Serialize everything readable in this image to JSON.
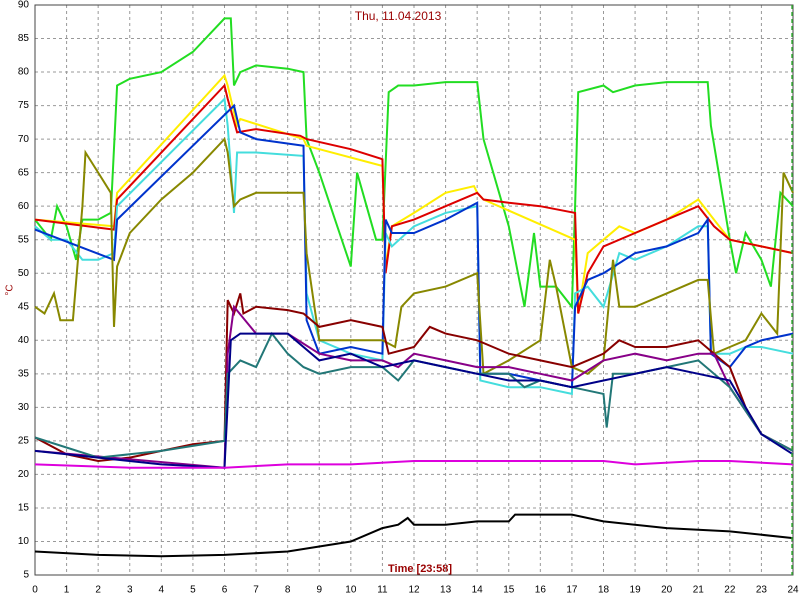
{
  "chart_data": {
    "type": "line",
    "title": "Thu, 11.04.2013",
    "xlabel": "Time [23:58]",
    "ylabel": "°C",
    "xlim": [
      0,
      24
    ],
    "ylim": [
      5,
      90
    ],
    "xticks": [
      0,
      1,
      2,
      3,
      4,
      5,
      6,
      7,
      8,
      9,
      10,
      11,
      12,
      13,
      14,
      15,
      16,
      17,
      18,
      19,
      20,
      21,
      22,
      23,
      24
    ],
    "yticks": [
      5,
      10,
      15,
      20,
      25,
      30,
      35,
      40,
      45,
      50,
      55,
      60,
      65,
      70,
      75,
      80,
      85,
      90
    ],
    "grid": true,
    "cursor": 23.97,
    "cursor_color": "#33aa33",
    "series": [
      {
        "color": "#22dd22",
        "x": [
          0,
          0.5,
          0.7,
          1,
          1.3,
          1.5,
          2,
          2.4,
          2.6,
          3,
          4,
          5,
          6,
          6.2,
          6.3,
          6.5,
          7,
          8,
          8.5,
          8.6,
          9,
          9.5,
          10,
          10.2,
          10.5,
          10.8,
          11,
          11.2,
          11.5,
          12,
          13,
          14,
          14.2,
          15,
          15.5,
          15.8,
          16,
          16.5,
          17,
          17.1,
          17.2,
          18,
          18.3,
          19,
          20,
          21.3,
          21.4,
          22,
          22.2,
          22.5,
          23,
          23.3,
          23.6,
          24
        ],
        "values": [
          58,
          55,
          60,
          57,
          52,
          58,
          58,
          59,
          78,
          79,
          80,
          83,
          88,
          88,
          78,
          80,
          81,
          80.5,
          80,
          70,
          65,
          58,
          51,
          65,
          60,
          55,
          55,
          77,
          78,
          78,
          78.5,
          78.5,
          70,
          57,
          45,
          56,
          48,
          48,
          45,
          60,
          77,
          78,
          77,
          78,
          78.5,
          78.5,
          72,
          55,
          50,
          56,
          52,
          48,
          62,
          60
        ]
      },
      {
        "color": "#ffee00",
        "x": [
          0,
          2.5,
          2.6,
          6,
          6.1,
          6.4,
          6.5,
          8.5,
          8.6,
          11,
          11.1,
          11.3,
          12,
          13,
          13.9,
          14,
          14.2,
          17.1,
          17.2,
          17.5,
          18,
          18.5,
          19,
          20,
          21,
          21.5,
          22,
          23,
          24
        ],
        "values": [
          58,
          57,
          62,
          79.5,
          78,
          72,
          73,
          70,
          69,
          66,
          51,
          57,
          59,
          62,
          63,
          62,
          61,
          55,
          44,
          53,
          55,
          57,
          56,
          58,
          61,
          58,
          55,
          54,
          53
        ]
      },
      {
        "color": "#dd0000",
        "x": [
          0,
          2.5,
          2.6,
          6,
          6.1,
          6.4,
          7,
          8.4,
          8.6,
          10,
          11,
          11.1,
          11.3,
          12,
          13,
          14,
          14.2,
          15,
          16,
          17.1,
          17.2,
          17.5,
          18,
          19,
          20,
          21,
          21.5,
          22,
          24
        ],
        "values": [
          58,
          56.5,
          61,
          78,
          76,
          71,
          71.5,
          70.5,
          70,
          68.5,
          67,
          50,
          57,
          58,
          60,
          62,
          61,
          60.5,
          60,
          59,
          44,
          50,
          54,
          56,
          58,
          60,
          57,
          55,
          53
        ]
      },
      {
        "color": "#44dddd",
        "x": [
          0,
          0.5,
          1,
          1.5,
          2,
          2.5,
          2.6,
          6,
          6.1,
          6.3,
          6.4,
          7,
          8.5,
          8.6,
          9,
          10,
          11,
          11.1,
          11.3,
          12,
          13,
          14,
          14.1,
          15,
          16,
          17,
          17.1,
          17.5,
          18,
          18.5,
          19,
          20,
          21,
          21.3,
          21.4,
          22,
          22.5,
          23,
          24
        ],
        "values": [
          57,
          55,
          55,
          52,
          52,
          53,
          60,
          76,
          72,
          59,
          68,
          68,
          67.5,
          47,
          40,
          38,
          37,
          56,
          54,
          57,
          59,
          60,
          34,
          33,
          33,
          32,
          47,
          48,
          45,
          53,
          52,
          54,
          57,
          57,
          38,
          38,
          39,
          39,
          38
        ]
      },
      {
        "color": "#0033cc",
        "x": [
          0,
          2.5,
          2.6,
          6.3,
          6.5,
          7,
          8.5,
          8.6,
          9,
          10,
          11,
          11.1,
          11.3,
          12,
          13,
          14,
          14.1,
          15,
          16,
          17,
          17.1,
          17.5,
          18,
          19,
          20,
          21,
          21.3,
          21.4,
          22,
          22.5,
          23,
          24
        ],
        "values": [
          56.5,
          52,
          58,
          75,
          71,
          70,
          69,
          43,
          38,
          39,
          38,
          58,
          56,
          56,
          58,
          60.5,
          35,
          35,
          34,
          33,
          45,
          49,
          50,
          53,
          54,
          56,
          58,
          38,
          36,
          39,
          40,
          41
        ]
      },
      {
        "color": "#888800",
        "x": [
          0,
          0.3,
          0.6,
          0.8,
          1.2,
          1.5,
          1.6,
          2,
          2.4,
          2.5,
          2.6,
          3,
          4,
          5,
          6,
          6.1,
          6.3,
          6.5,
          7,
          8.5,
          8.6,
          9,
          10,
          11,
          11.4,
          11.6,
          12,
          13,
          14,
          14.2,
          15,
          16,
          16.3,
          16.5,
          17,
          17.5,
          18,
          18.3,
          18.5,
          19,
          20,
          21,
          21.3,
          21.5,
          22,
          22.5,
          23,
          23.5,
          23.7,
          24
        ],
        "values": [
          45,
          44,
          47,
          43,
          43,
          60,
          68,
          65,
          62,
          42,
          51,
          56,
          61,
          65,
          70,
          68,
          60,
          61,
          62,
          62,
          53,
          40,
          40,
          40,
          39,
          45,
          47,
          48,
          50,
          35,
          37,
          40,
          52,
          48,
          36,
          35,
          37,
          52,
          45,
          45,
          47,
          49,
          49,
          38,
          39,
          40,
          44,
          41,
          65,
          62
        ]
      },
      {
        "color": "#880000",
        "x": [
          0,
          1,
          2,
          3,
          4,
          5,
          6,
          6.1,
          6.3,
          6.5,
          6.6,
          7,
          8,
          8.5,
          9,
          10,
          11,
          11.2,
          12,
          12.5,
          13,
          14,
          14.5,
          15,
          16,
          17,
          17.5,
          18,
          18.5,
          19,
          20,
          21,
          22,
          22.5,
          23,
          24
        ],
        "values": [
          25.5,
          23,
          22,
          22.5,
          23.5,
          24.5,
          25,
          46,
          44,
          47,
          44,
          45,
          44.5,
          44,
          42,
          43,
          42,
          38,
          39,
          42,
          41,
          40,
          39,
          38,
          37,
          36,
          37,
          38,
          40,
          39,
          39,
          40,
          36,
          30,
          26,
          23.5
        ]
      },
      {
        "color": "#880088",
        "x": [
          0,
          6,
          6.1,
          6.3,
          7,
          8,
          9,
          10,
          11,
          11.5,
          12,
          13,
          14,
          15,
          16,
          17,
          18,
          19,
          20,
          21,
          21.5,
          22,
          23,
          24
        ],
        "values": [
          23.5,
          21,
          38,
          45,
          41,
          41,
          38,
          37,
          37,
          36,
          38,
          37,
          36,
          36,
          35,
          34,
          37,
          38,
          37,
          38,
          38,
          33,
          26,
          23.5
        ]
      },
      {
        "color": "#227777",
        "x": [
          0,
          2,
          4,
          6,
          6.1,
          6.5,
          7,
          7.5,
          8,
          8.5,
          9,
          10,
          11,
          11.5,
          12,
          13,
          14,
          15,
          15.5,
          16,
          17,
          18,
          18.1,
          18.3,
          19,
          20,
          21,
          22,
          23,
          24
        ],
        "values": [
          25.5,
          22.5,
          23.5,
          25,
          35,
          37,
          36,
          41,
          38,
          36,
          35,
          36,
          36,
          34,
          37,
          36,
          35,
          35,
          33,
          34,
          33,
          32,
          27,
          35,
          35,
          36,
          37,
          33,
          26,
          23.5
        ]
      },
      {
        "color": "#000088",
        "x": [
          0,
          2,
          4,
          6,
          6.2,
          6.5,
          8,
          9,
          10,
          11,
          12,
          13,
          14,
          15,
          16,
          17,
          18,
          19,
          20,
          21,
          22,
          22.5,
          23,
          24
        ],
        "values": [
          23.5,
          22.5,
          21.5,
          21,
          40,
          41,
          41,
          37,
          38,
          36,
          37,
          36,
          35,
          34,
          34,
          33,
          34,
          35,
          36,
          35,
          34,
          30,
          26,
          23
        ]
      },
      {
        "color": "#dd00dd",
        "x": [
          0,
          3,
          6,
          8,
          10,
          12,
          14,
          16,
          18,
          19,
          21,
          22,
          24
        ],
        "values": [
          21.5,
          21,
          21,
          21.5,
          21.5,
          22,
          22,
          22,
          22,
          21.5,
          22,
          22,
          21.5
        ]
      },
      {
        "color": "#000000",
        "x": [
          0,
          2,
          4,
          6,
          8,
          10,
          11,
          11.5,
          11.8,
          12,
          13,
          14,
          15,
          15.2,
          16,
          17,
          18,
          20,
          22,
          24
        ],
        "values": [
          8.5,
          8,
          7.8,
          8,
          8.5,
          10,
          12,
          12.5,
          13.5,
          12.5,
          12.5,
          13,
          13,
          14,
          14,
          14,
          13,
          12,
          11.5,
          10.5
        ]
      }
    ]
  }
}
